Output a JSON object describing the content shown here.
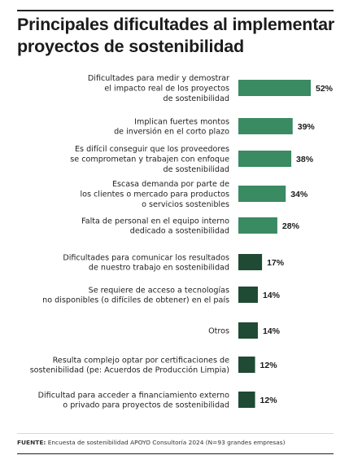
{
  "chart_data": {
    "type": "bar",
    "orientation": "horizontal",
    "title": "Principales dificultades al implementar proyectos de sostenibilidad",
    "categories": [
      [
        "Dificultades para medir y demostrar",
        "el impacto real de los proyectos",
        "de sostenibilidad"
      ],
      [
        "Implican fuertes montos",
        "de inversión en el corto plazo"
      ],
      [
        "Es difícil conseguir que los proveedores",
        "se comprometan y trabajen con enfoque",
        "de sostenibilidad"
      ],
      [
        "Escasa demanda por parte de",
        "los clientes o mercado para productos",
        "o servicios sostenibles"
      ],
      [
        "Falta de personal en el equipo interno",
        "dedicado a sostenibilidad"
      ],
      [
        "Dificultades para comunicar los resultados",
        "de nuestro trabajo en sostenibilidad"
      ],
      [
        "Se requiere de acceso a tecnologías",
        "no disponibles (o difíciles de obtener) en el país"
      ],
      [
        "Otros"
      ],
      [
        "Resulta complejo optar por certificaciones de",
        "sostenibilidad (pe: Acuerdos de Producción Limpia)"
      ],
      [
        "Dificultad para acceder a financiamiento externo",
        "o privado para proyectos de sostenibilidad"
      ]
    ],
    "values": [
      52,
      39,
      38,
      34,
      28,
      17,
      14,
      14,
      12,
      12
    ],
    "value_labels": [
      "52%",
      "39%",
      "38%",
      "34%",
      "28%",
      "17%",
      "14%",
      "14%",
      "12%",
      "12%"
    ],
    "unit": "%",
    "colors": {
      "high": "#3a8a62",
      "low": "#1f4a33"
    },
    "high_threshold": 20,
    "legend": "none",
    "grid": false
  },
  "source": {
    "label": "FUENTE:",
    "text": " Encuesta de sostenibilidad APOYO Consultoría 2024 (N=93 grandes empresas)"
  }
}
